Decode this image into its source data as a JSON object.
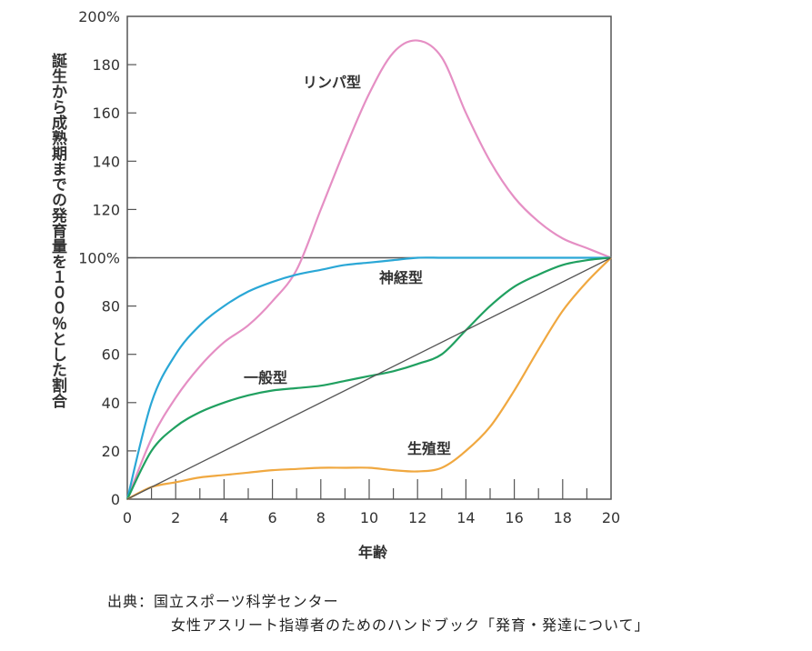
{
  "chart_data": {
    "type": "line",
    "xlabel": "年齢",
    "ylabel": "誕生から成熟期までの発育量を１００％とした割合",
    "xlim": [
      0,
      20
    ],
    "ylim": [
      0,
      200
    ],
    "x_ticks": [
      "0",
      "2",
      "4",
      "6",
      "8",
      "10",
      "12",
      "14",
      "16",
      "18",
      "20"
    ],
    "y_ticks": [
      "0",
      "20",
      "40",
      "60",
      "80",
      "100%",
      "120",
      "140",
      "160",
      "180",
      "200%"
    ],
    "reference_line_y": 100,
    "x": [
      0,
      1,
      2,
      3,
      4,
      5,
      6,
      7,
      8,
      9,
      10,
      11,
      12,
      13,
      14,
      15,
      16,
      17,
      18,
      19,
      20
    ],
    "series": [
      {
        "name": "リンパ型",
        "color": "#e58fc4",
        "values": [
          0,
          25,
          42,
          55,
          65,
          72,
          82,
          95,
          120,
          145,
          168,
          185,
          190,
          183,
          160,
          140,
          125,
          115,
          108,
          104,
          100
        ]
      },
      {
        "name": "神経型",
        "color": "#2aa7d6",
        "values": [
          0,
          40,
          60,
          72,
          80,
          86,
          90,
          93,
          95,
          97,
          98,
          99,
          100,
          100,
          100,
          100,
          100,
          100,
          100,
          100,
          100
        ]
      },
      {
        "name": "一般型",
        "color": "#20a060",
        "values": [
          0,
          20,
          30,
          36,
          40,
          43,
          45,
          46,
          47,
          49,
          51,
          53,
          56,
          60,
          70,
          80,
          88,
          93,
          97,
          99,
          100
        ]
      },
      {
        "name": "生殖型",
        "color": "#f0a840",
        "values": [
          0,
          5,
          7,
          9,
          10,
          11,
          12,
          12.5,
          13,
          13,
          13,
          12,
          11.5,
          13,
          20,
          30,
          45,
          62,
          78,
          90,
          100
        ]
      },
      {
        "name": "基準線",
        "color": "#555555",
        "values": [
          0,
          5,
          10,
          15,
          20,
          25,
          30,
          35,
          40,
          45,
          50,
          55,
          60,
          65,
          70,
          75,
          80,
          85,
          90,
          95,
          100
        ]
      }
    ]
  },
  "source": {
    "line1": "出典：国立スポーツ科学センター",
    "line2": "女性アスリート指導者のためのハンドブック「発育・発達について」"
  }
}
